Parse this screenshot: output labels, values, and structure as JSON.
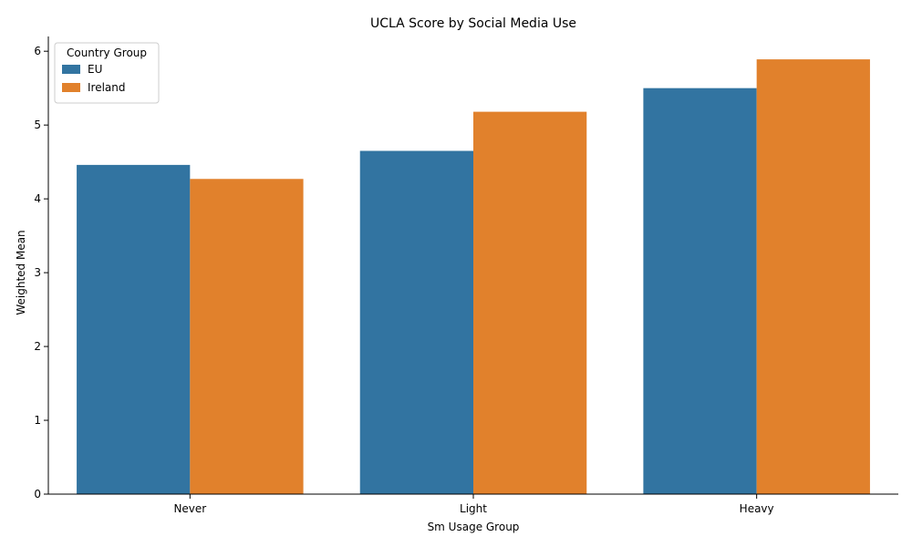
{
  "chart_data": {
    "type": "bar",
    "title": "UCLA Score by Social Media Use",
    "xlabel": "Sm Usage Group",
    "ylabel": "Weighted Mean",
    "categories": [
      "Never",
      "Light",
      "Heavy"
    ],
    "series": [
      {
        "name": "EU",
        "color": "#3274a1",
        "values": [
          4.46,
          4.65,
          5.5
        ]
      },
      {
        "name": "Ireland",
        "color": "#e1812c",
        "values": [
          4.27,
          5.18,
          5.89
        ]
      }
    ],
    "ylim": [
      0,
      6.2
    ],
    "yticks": [
      0,
      1,
      2,
      3,
      4,
      5,
      6
    ],
    "grid": false,
    "legend": {
      "title": "Country Group",
      "placement": "top-left"
    }
  }
}
